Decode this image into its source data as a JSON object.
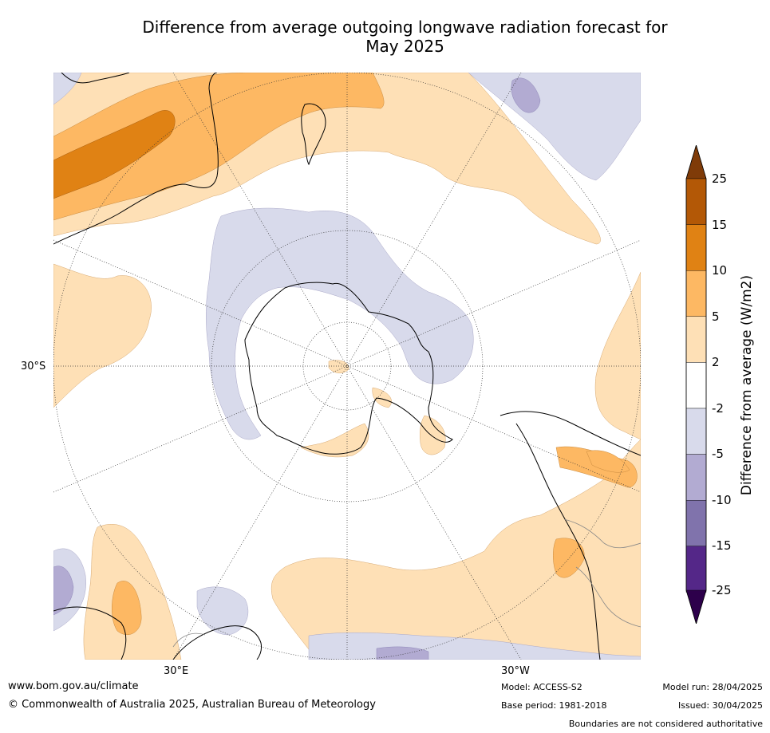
{
  "title_line1": "Difference from average outgoing longwave radiation forecast for",
  "title_line2": "May 2025",
  "axes": {
    "lat_label": "30°S",
    "lon_label_east": "30°E",
    "lon_label_west": "30°W"
  },
  "colorbar": {
    "title": "Difference from average (W/m2)",
    "ticks": [
      "25",
      "15",
      "10",
      "5",
      "2",
      "-2",
      "-5",
      "-10",
      "-15",
      "-25"
    ],
    "colors": {
      "over": "#7f3b08",
      "b15_25": "#b35806",
      "b10_15": "#e08214",
      "b5_10": "#fdb863",
      "b2_5": "#fee0b6",
      "bneg2_2": "#ffffff",
      "bneg5_neg2": "#d8daeb",
      "bneg10_neg5": "#b2abd2",
      "bneg15_neg10": "#8073ac",
      "bneg25_neg15": "#542788",
      "under": "#2d004b"
    }
  },
  "footer": {
    "website": "www.bom.gov.au/climate",
    "copyright": "© Commonwealth of Australia 2025, Australian Bureau of Meteorology",
    "model": "Model: ACCESS-S2",
    "base_period": "Base period: 1981-2018",
    "model_run": "Model run: 28/04/2025",
    "issued": "Issued: 30/04/2025",
    "disclaimer": "Boundaries are not considered authoritative"
  }
}
